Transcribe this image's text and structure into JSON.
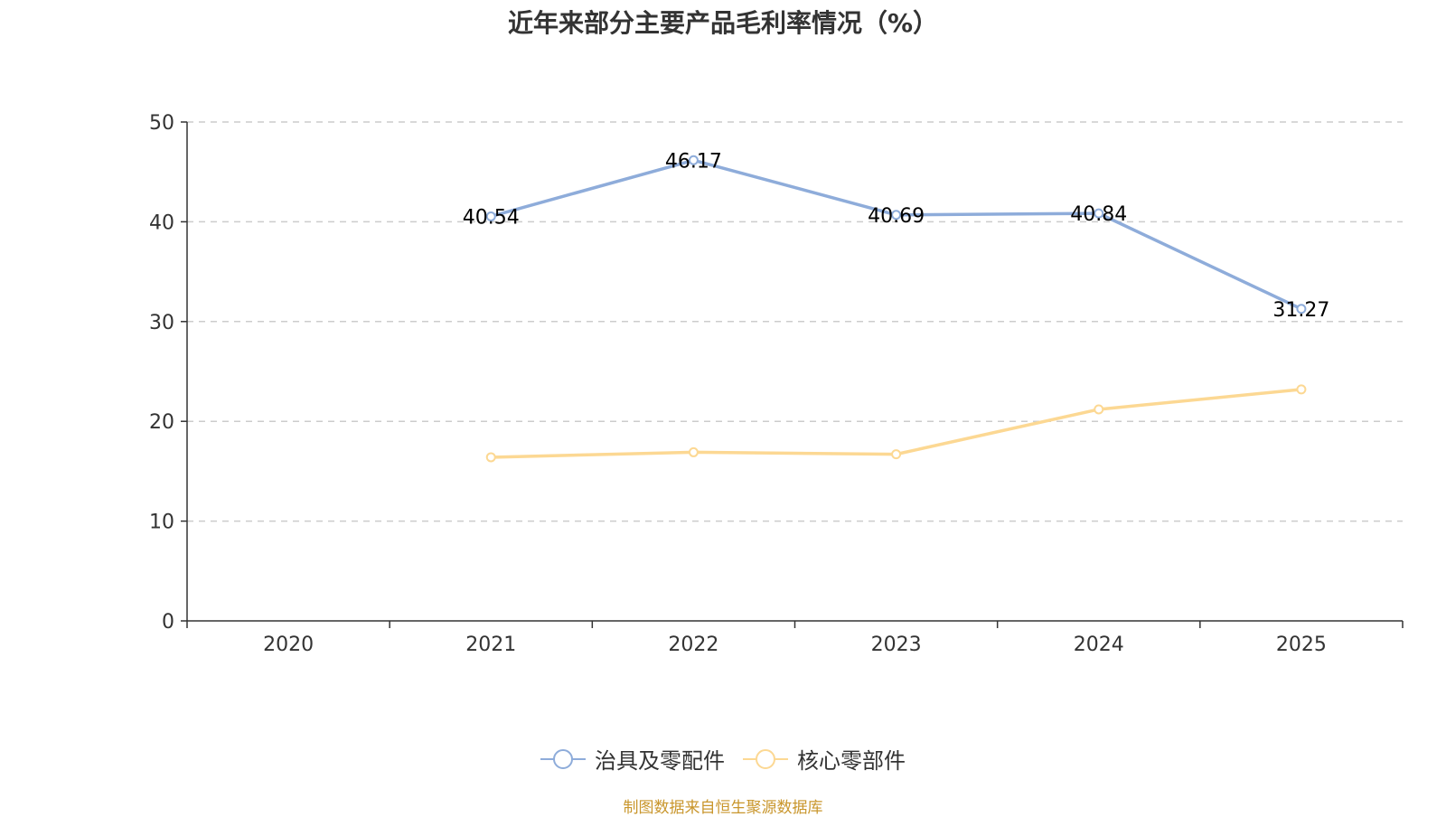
{
  "chart_data": {
    "type": "line",
    "title": "近年来部分主要产品毛利率情况（%）",
    "categories": [
      "2020",
      "2021",
      "2022",
      "2023",
      "2024",
      "2025"
    ],
    "ylim": [
      0,
      50
    ],
    "yticks": [
      0,
      10,
      20,
      30,
      40,
      50
    ],
    "grid": true,
    "legend_position": "bottom",
    "series": [
      {
        "name": "治具及零配件",
        "color": "#8eacda",
        "show_labels": true,
        "values": [
          null,
          40.54,
          46.17,
          40.69,
          40.84,
          31.27
        ]
      },
      {
        "name": "核心零部件",
        "color": "#fcd893",
        "show_labels": false,
        "values": [
          null,
          16.4,
          16.9,
          16.7,
          21.2,
          23.2
        ]
      }
    ]
  },
  "source": {
    "text": "制图数据来自恒生聚源数据库",
    "color": "#c9962c"
  }
}
